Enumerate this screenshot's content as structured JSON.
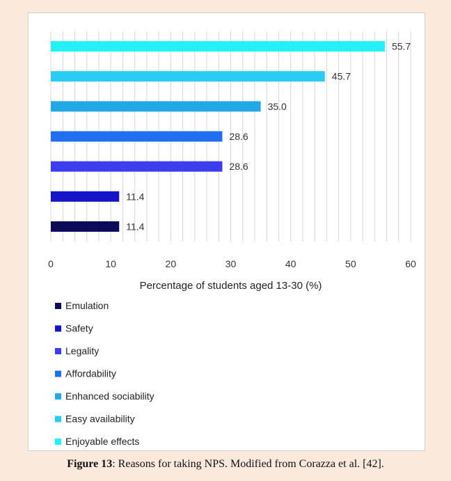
{
  "chart_data": {
    "type": "bar",
    "orientation": "horizontal",
    "categories": [
      "Emulation",
      "Safety",
      "Legality",
      "Affordability",
      "Enhanced sociability",
      "Easy availability",
      "Enjoyable effects"
    ],
    "values": [
      11.4,
      11.4,
      28.6,
      28.6,
      35.0,
      45.7,
      55.7
    ],
    "value_labels": [
      "11.4",
      "11.4",
      "28.6",
      "28.6",
      "35.0",
      "45.7",
      "55.7"
    ],
    "colors": [
      "#0b0b5a",
      "#1414c8",
      "#3d3df0",
      "#1f6ff0",
      "#21a8e6",
      "#29ccf2",
      "#22f2f7"
    ],
    "xlabel": "Percentage of students aged 13-30 (%)",
    "xlim": [
      0,
      60
    ],
    "xticks": [
      "0",
      "10",
      "20",
      "30",
      "40",
      "50",
      "60"
    ],
    "grid": true,
    "legend_position": "bottom"
  },
  "caption": {
    "label": "Figure 13",
    "text": ": Reasons for taking NPS. Modified from Corazza et al. [42]."
  }
}
